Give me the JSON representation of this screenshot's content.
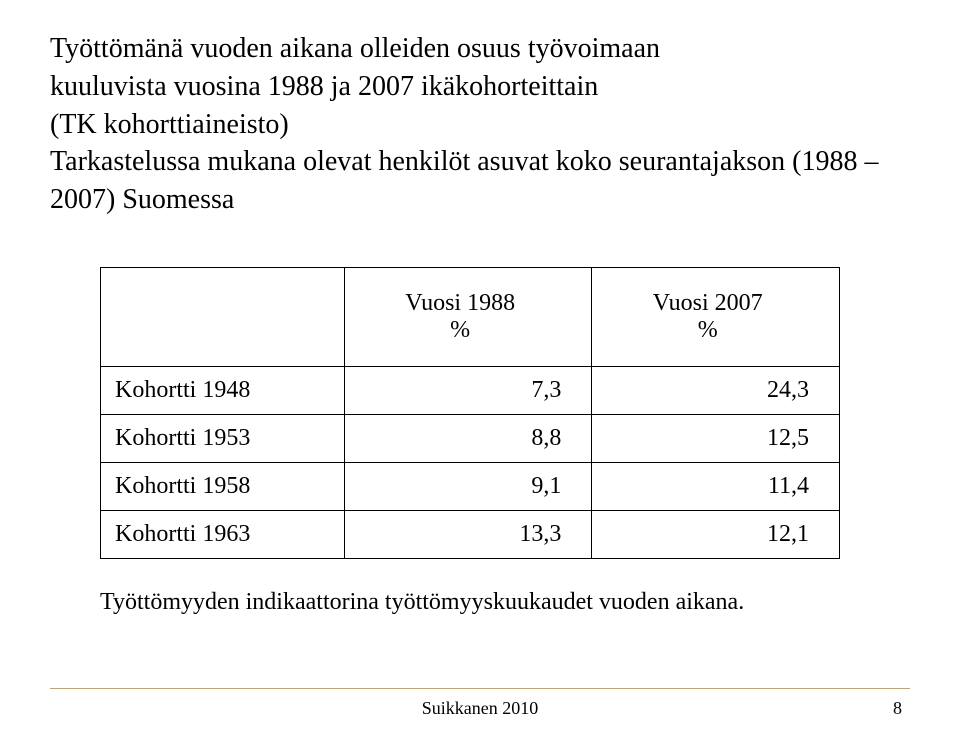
{
  "title_line1": "Työttömänä vuoden aikana olleiden osuus työvoimaan",
  "title_line2": "kuuluvista vuosina 1988 ja 2007 ikäkohorteittain",
  "title_line3": "(TK kohorttiaineisto)",
  "title_line4": "Tarkastelussa mukana olevat henkilöt asuvat koko seurantajakson (1988 – 2007) Suomessa",
  "table": {
    "header_col1_line1": "Vuosi 1988",
    "header_col1_line2": "%",
    "header_col2_line1": "Vuosi 2007",
    "header_col2_line2": "%",
    "rows": [
      {
        "label": "Kohortti 1948",
        "v1": "7,3",
        "v2": "24,3"
      },
      {
        "label": "Kohortti 1953",
        "v1": "8,8",
        "v2": "12,5"
      },
      {
        "label": "Kohortti 1958",
        "v1": "9,1",
        "v2": "11,4"
      },
      {
        "label": "Kohortti 1963",
        "v1": "13,3",
        "v2": "12,1"
      }
    ],
    "cell_fontsize": 24,
    "border_color": "#000000"
  },
  "caption": "Työttömyyden indikaattorina työttömyyskuukaudet vuoden aikana.",
  "divider_color": "#d2a24c",
  "footer_text": "Suikkanen 2010",
  "page_number": "8",
  "background_color": "#ffffff",
  "text_color": "#000000",
  "title_fontsize": 28,
  "footer_fontsize": 18
}
